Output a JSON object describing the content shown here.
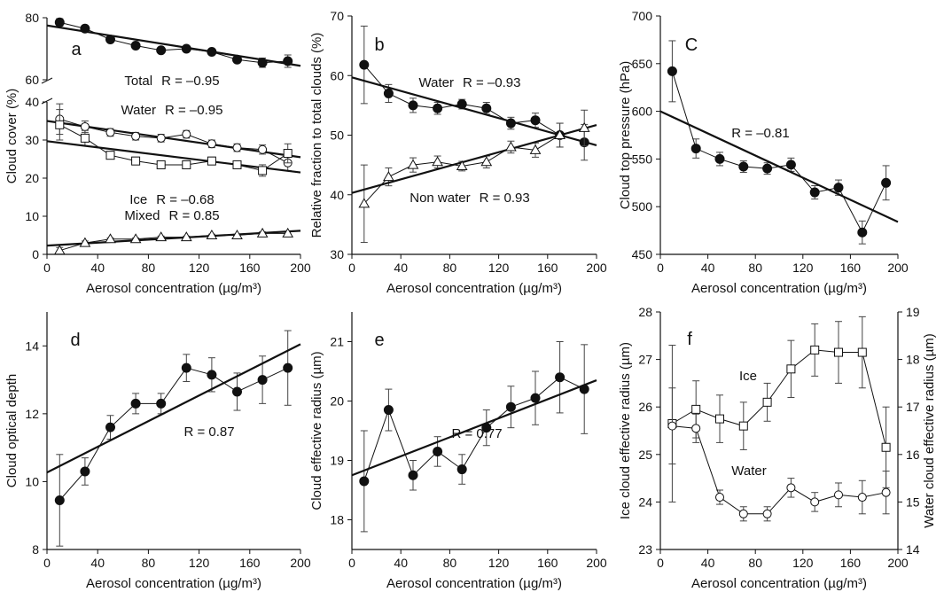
{
  "figure": {
    "layout": "2x3 grid of scatter/line panels"
  },
  "chart_data": [
    {
      "id": "a",
      "type": "line",
      "panel_label": "a",
      "xlabel": "Aerosol concentration (µg/m³)",
      "ylabel": "Cloud cover (%)",
      "xlim": [
        0,
        200
      ],
      "xticks": [
        0,
        40,
        80,
        120,
        160,
        200
      ],
      "broken_axis": true,
      "segments": [
        {
          "ylim": [
            60,
            80
          ],
          "yticks": [
            60,
            80
          ],
          "series_ids": [
            "total"
          ]
        },
        {
          "ylim": [
            0,
            40
          ],
          "yticks": [
            0,
            10,
            20,
            30,
            40
          ],
          "series_ids": [
            "water",
            "ice",
            "mixed"
          ]
        }
      ],
      "series": [
        {
          "id": "total",
          "name": "Total",
          "marker": "filled-circle",
          "x": [
            10,
            30,
            50,
            70,
            90,
            110,
            130,
            150,
            170,
            190
          ],
          "y": [
            78.5,
            76.5,
            73,
            71,
            69.5,
            70,
            69,
            66.5,
            65.5,
            66
          ],
          "err": [
            1.2,
            1.0,
            0.8,
            0.8,
            0.8,
            0.7,
            0.7,
            1.0,
            1.5,
            2.0
          ],
          "fit": [
            77.5,
            64.5
          ],
          "r_text": "R = –0.95"
        },
        {
          "id": "water",
          "name": "Water",
          "marker": "open-circle",
          "x": [
            10,
            30,
            50,
            70,
            90,
            110,
            130,
            150,
            170,
            190
          ],
          "y": [
            35.5,
            33.5,
            32,
            31,
            30.5,
            31.5,
            29,
            28,
            27.5,
            24
          ],
          "err": [
            4,
            1.5,
            1,
            1,
            1,
            1,
            1,
            1,
            1.2,
            2
          ],
          "fit": [
            35,
            25.5
          ],
          "r_text": "R = –0.95"
        },
        {
          "id": "ice",
          "name": "Ice",
          "marker": "open-square",
          "x": [
            10,
            30,
            50,
            70,
            90,
            110,
            130,
            150,
            170,
            190
          ],
          "y": [
            34,
            30.5,
            26,
            24.5,
            23.5,
            23.5,
            24.5,
            23.5,
            22,
            26.5
          ],
          "err": [
            4,
            2,
            1,
            1,
            1,
            1,
            1,
            1,
            1.5,
            2.5
          ],
          "fit": [
            29.7,
            21.5
          ],
          "r_text": "R = –0.68"
        },
        {
          "id": "mixed",
          "name": "Mixed",
          "marker": "open-triangle",
          "x": [
            10,
            30,
            50,
            70,
            90,
            110,
            130,
            150,
            170,
            190
          ],
          "y": [
            1,
            3,
            4,
            4,
            4.5,
            4.5,
            5,
            5,
            5.5,
            5.5
          ],
          "err": [
            0.8,
            0.5,
            0.3,
            0.3,
            0.3,
            0.3,
            0.3,
            0.3,
            0.4,
            0.5
          ],
          "fit": [
            2.3,
            6.2
          ],
          "r_text": "R = 0.85"
        }
      ]
    },
    {
      "id": "b",
      "type": "line",
      "panel_label": "b",
      "xlabel": "Aerosol concentration (µg/m³)",
      "ylabel": "Relative fraction to total clouds (%)",
      "xlim": [
        0,
        200
      ],
      "xticks": [
        0,
        40,
        80,
        120,
        160,
        200
      ],
      "ylim": [
        30,
        70
      ],
      "yticks": [
        30,
        40,
        50,
        60,
        70
      ],
      "series": [
        {
          "id": "water",
          "name": "Water",
          "marker": "filled-circle",
          "x": [
            10,
            30,
            50,
            70,
            90,
            110,
            130,
            150,
            170,
            190
          ],
          "y": [
            61.8,
            57,
            55,
            54.5,
            55.2,
            54.5,
            52,
            52.5,
            50,
            48.8
          ],
          "err": [
            6.5,
            1.5,
            1.2,
            1,
            0.8,
            1,
            1,
            1.2,
            2,
            3
          ],
          "fit": [
            59.7,
            48.3
          ],
          "r_text": "R = –0.93"
        },
        {
          "id": "nonwater",
          "name": "Non water",
          "marker": "open-triangle",
          "x": [
            10,
            30,
            50,
            70,
            90,
            110,
            130,
            150,
            170,
            190
          ],
          "y": [
            38.5,
            43,
            45,
            45.5,
            44.8,
            45.5,
            48,
            47.5,
            50,
            51.2
          ],
          "err": [
            6.5,
            1.5,
            1.2,
            1,
            0.8,
            1,
            1,
            1.2,
            2,
            3
          ],
          "fit": [
            40.3,
            51.7
          ],
          "r_text": "R = 0.93"
        }
      ]
    },
    {
      "id": "c",
      "type": "line",
      "panel_label": "C",
      "xlabel": "Aerosol concentration (µg/m³)",
      "ylabel": "Cloud top pressure (hPa)",
      "xlim": [
        0,
        200
      ],
      "xticks": [
        0,
        40,
        80,
        120,
        160,
        200
      ],
      "ylim": [
        450,
        700
      ],
      "yticks": [
        450,
        500,
        550,
        600,
        650,
        700
      ],
      "series": [
        {
          "id": "ctp",
          "marker": "filled-circle",
          "x": [
            10,
            30,
            50,
            70,
            90,
            110,
            130,
            150,
            170,
            190
          ],
          "y": [
            642,
            561,
            550,
            542,
            540,
            544,
            515,
            520,
            473,
            525
          ],
          "err": [
            32,
            10,
            7,
            6,
            6,
            7,
            7,
            8,
            12,
            18
          ],
          "fit": [
            600,
            484
          ],
          "r_text": "R = –0.81"
        }
      ]
    },
    {
      "id": "d",
      "type": "line",
      "panel_label": "d",
      "xlabel": "Aerosol concentration (µg/m³)",
      "ylabel": "Cloud optical depth",
      "xlim": [
        0,
        200
      ],
      "xticks": [
        0,
        40,
        80,
        120,
        160,
        200
      ],
      "ylim": [
        8,
        15
      ],
      "yticks": [
        8,
        10,
        12,
        14
      ],
      "series": [
        {
          "id": "cod",
          "marker": "filled-circle",
          "x": [
            10,
            30,
            50,
            70,
            90,
            110,
            130,
            150,
            170,
            190
          ],
          "y": [
            9.45,
            10.3,
            11.6,
            12.3,
            12.3,
            13.35,
            13.15,
            12.65,
            13.0,
            13.35
          ],
          "err": [
            1.35,
            0.4,
            0.35,
            0.3,
            0.3,
            0.4,
            0.5,
            0.55,
            0.7,
            1.1
          ],
          "fit": [
            10.27,
            14.05
          ],
          "r_text": "R = 0.87"
        }
      ]
    },
    {
      "id": "e",
      "type": "line",
      "panel_label": "e",
      "xlabel": "Aerosol concentration (µg/m³)",
      "ylabel": "Cloud effective radius (µm)",
      "xlim": [
        0,
        200
      ],
      "xticks": [
        0,
        40,
        80,
        120,
        160,
        200
      ],
      "ylim": [
        17.5,
        21.5
      ],
      "yticks": [
        18,
        19,
        20,
        21
      ],
      "series": [
        {
          "id": "cer",
          "marker": "filled-circle",
          "x": [
            10,
            30,
            50,
            70,
            90,
            110,
            130,
            150,
            170,
            190
          ],
          "y": [
            18.65,
            19.85,
            18.75,
            19.15,
            18.85,
            19.55,
            19.9,
            20.05,
            20.4,
            20.2
          ],
          "err": [
            0.85,
            0.35,
            0.25,
            0.25,
            0.25,
            0.3,
            0.35,
            0.45,
            0.6,
            0.75
          ],
          "fit": [
            18.75,
            20.35
          ],
          "r_text": "R = 0.77"
        }
      ]
    },
    {
      "id": "f",
      "type": "line",
      "panel_label": "f",
      "xlabel": "Aerosol concentration (µg/m³)",
      "ylabel": "Ice cloud effective radius (µm)",
      "y2label": "Water cloud effective radius (µm)",
      "xlim": [
        0,
        200
      ],
      "xticks": [
        0,
        40,
        80,
        120,
        160,
        200
      ],
      "ylim": [
        23,
        28
      ],
      "yticks": [
        23,
        24,
        25,
        26,
        27,
        28
      ],
      "y2lim": [
        14,
        19
      ],
      "y2ticks": [
        14,
        15,
        16,
        17,
        18,
        19
      ],
      "series": [
        {
          "id": "ice",
          "name": "Ice",
          "marker": "open-square",
          "axis": "left",
          "x": [
            10,
            30,
            50,
            70,
            90,
            110,
            130,
            150,
            170,
            190
          ],
          "y": [
            25.65,
            25.95,
            25.75,
            25.6,
            26.1,
            26.8,
            27.2,
            27.15,
            27.15,
            25.15
          ],
          "err": [
            1.65,
            0.6,
            0.5,
            0.5,
            0.4,
            0.6,
            0.55,
            0.65,
            0.75,
            0.85
          ]
        },
        {
          "id": "water",
          "name": "Water",
          "marker": "open-circle",
          "axis": "right",
          "x": [
            10,
            30,
            50,
            70,
            90,
            110,
            130,
            150,
            170,
            190
          ],
          "y": [
            16.6,
            16.55,
            15.1,
            14.75,
            14.75,
            15.3,
            15.0,
            15.15,
            15.1,
            15.2
          ],
          "err": [
            0.8,
            0.3,
            0.15,
            0.15,
            0.15,
            0.2,
            0.2,
            0.25,
            0.35,
            0.45
          ]
        }
      ]
    }
  ]
}
